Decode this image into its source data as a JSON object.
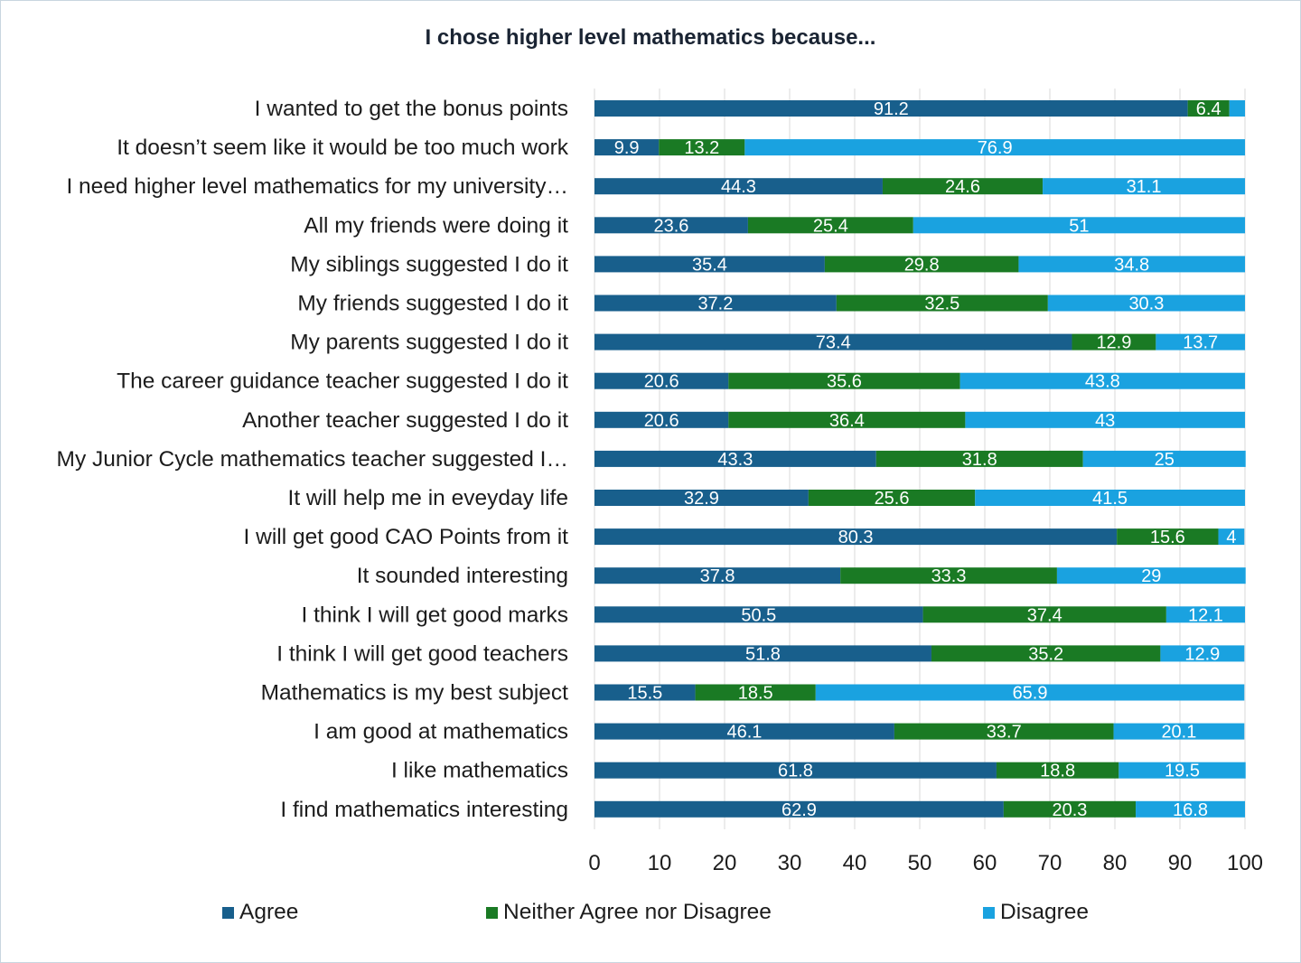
{
  "chart_data": {
    "type": "bar",
    "orientation": "horizontal",
    "stacked": true,
    "title": "I chose higher level mathematics because...",
    "xlabel": "",
    "ylabel": "",
    "xlim": [
      0,
      100
    ],
    "xticks": [
      "0",
      "10",
      "20",
      "30",
      "40",
      "50",
      "60",
      "70",
      "80",
      "90",
      "100"
    ],
    "grid": "vertical",
    "legend_position": "bottom",
    "categories": [
      "I wanted to get the bonus points",
      "It doesn’t seem like it would be too much work",
      "I need higher level mathematics for my university…",
      "All my friends were doing it",
      "My siblings suggested I do it",
      "My friends suggested I do it",
      "My parents suggested I do it",
      "The career guidance teacher suggested I do it",
      "Another teacher suggested I do it",
      "My Junior Cycle mathematics teacher suggested I…",
      "It will help me in eveyday life",
      "I will get good CAO Points from it",
      "It sounded interesting",
      "I think I will get good marks",
      "I think I will get good teachers",
      "Mathematics is my best subject",
      "I am good at mathematics",
      "I like mathematics",
      "I find mathematics interesting"
    ],
    "series": [
      {
        "name": "Agree",
        "color": "#185f8c",
        "values": [
          91.2,
          9.9,
          44.3,
          23.6,
          35.4,
          37.2,
          73.4,
          20.6,
          20.6,
          43.3,
          32.9,
          80.3,
          37.8,
          50.5,
          51.8,
          15.5,
          46.1,
          61.8,
          62.9
        ],
        "labels": [
          "91.2",
          "9.9",
          "44.3",
          "23.6",
          "35.4",
          "37.2",
          "73.4",
          "20.6",
          "20.6",
          "43.3",
          "32.9",
          "80.3",
          "37.8",
          "50.5",
          "51.8",
          "15.5",
          "46.1",
          "61.8",
          "62.9"
        ]
      },
      {
        "name": "Neither Agree nor Disagree",
        "color": "#1a7a24",
        "values": [
          6.4,
          13.2,
          24.6,
          25.4,
          29.8,
          32.5,
          12.9,
          35.6,
          36.4,
          31.8,
          25.6,
          15.6,
          33.3,
          37.4,
          35.2,
          18.5,
          33.7,
          18.8,
          20.3
        ],
        "labels": [
          "6.4",
          "13.2",
          "24.6",
          "25.4",
          "29.8",
          "32.5",
          "12.9",
          "35.6",
          "36.4",
          "31.8",
          "25.6",
          "15.6",
          "33.3",
          "37.4",
          "35.2",
          "18.5",
          "33.7",
          "18.8",
          "20.3"
        ]
      },
      {
        "name": "Disagree",
        "color": "#1aa2e0",
        "values": [
          2.4,
          76.9,
          31.1,
          51,
          34.8,
          30.3,
          13.7,
          43.8,
          43,
          25,
          41.5,
          4,
          29,
          12.1,
          12.9,
          65.9,
          20.1,
          19.5,
          16.8
        ],
        "labels": [
          "",
          "76.9",
          "31.1",
          "51",
          "34.8",
          "30.3",
          "13.7",
          "43.8",
          "43",
          "25",
          "41.5",
          "4",
          "29",
          "12.1",
          "12.9",
          "65.9",
          "20.1",
          "19.5",
          "16.8"
        ]
      }
    ]
  }
}
